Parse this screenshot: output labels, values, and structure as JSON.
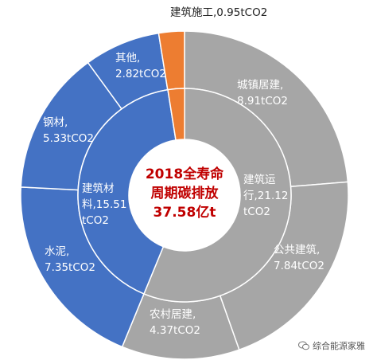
{
  "chart_data": {
    "type": "pie",
    "subtype": "sunburst-donut",
    "center_label": [
      "2018全寿命",
      "周期碳排放",
      "37.58亿t"
    ],
    "colors": {
      "operation": "#a6a6a6",
      "materials": "#4472c4",
      "construction": "#ed7d31",
      "text_center": "#c00000"
    },
    "inner_ring": [
      {
        "label": [
          "建筑运",
          "行,21.12",
          "tCO2"
        ],
        "value": 21.12,
        "category": "operation"
      },
      {
        "label": [
          "建筑材",
          "料,15.51",
          "tCO2"
        ],
        "value": 15.51,
        "category": "materials"
      },
      {
        "label": [],
        "value": 0.95,
        "category": "construction"
      }
    ],
    "outer_ring": [
      {
        "label": [
          "城镇居建,",
          "8.91tCO2"
        ],
        "value": 8.91,
        "category": "operation"
      },
      {
        "label": [
          "公共建筑,",
          "7.84tCO2"
        ],
        "value": 7.84,
        "category": "operation"
      },
      {
        "label": [
          "农村居建,",
          "4.37tCO2"
        ],
        "value": 4.37,
        "category": "operation"
      },
      {
        "label": [
          "水泥,",
          "7.35tCO2"
        ],
        "value": 7.35,
        "category": "materials"
      },
      {
        "label": [
          "钢材,",
          "5.33tCO2"
        ],
        "value": 5.33,
        "category": "materials"
      },
      {
        "label": [
          "其他,",
          "2.82tCO2"
        ],
        "value": 2.82,
        "category": "materials"
      },
      {
        "label": [
          "建筑施工,0.95tCO2"
        ],
        "value": 0.95,
        "category": "construction"
      }
    ]
  },
  "watermark": "综合能源家雅"
}
